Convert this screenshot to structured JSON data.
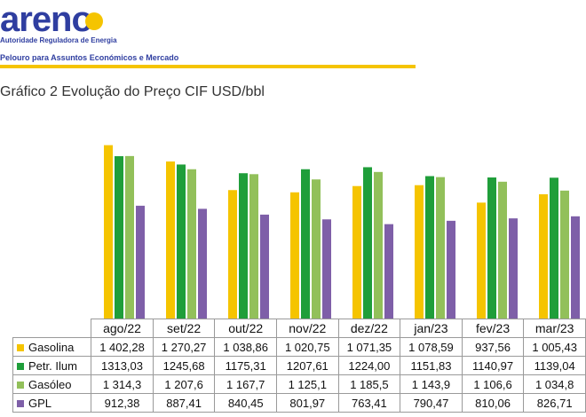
{
  "header": {
    "logo_text": "areno",
    "logo_tagline": "Autoridade Reguladora de Energia",
    "department": "Pelouro para Assuntos Económicos e Mercado"
  },
  "colors": {
    "brand_blue": "#2f3ea0",
    "brand_yellow": "#f5c400",
    "gasolina": "#f5c400",
    "petr_ilum": "#1f9e3a",
    "gasoleo": "#92c05a",
    "gpl": "#7e5fa8"
  },
  "chart_data": {
    "type": "bar",
    "title": "Gráfico 2 Evolução do Preço CIF USD/bbl",
    "categories": [
      "ago/22",
      "set/22",
      "out/22",
      "nov/22",
      "dez/22",
      "jan/23",
      "fev/23",
      "mar/23"
    ],
    "series": [
      {
        "name": "Gasolina",
        "color": "#f5c400",
        "values": [
          1402.28,
          1270.27,
          1038.86,
          1020.75,
          1071.35,
          1078.59,
          937.56,
          1005.43
        ],
        "labels": [
          "1 402,28",
          "1 270,27",
          "1 038,86",
          "1 020,75",
          "1 071,35",
          "1 078,59",
          "937,56",
          "1 005,43"
        ]
      },
      {
        "name": "Petr. Ilum",
        "color": "#1f9e3a",
        "values": [
          1313.03,
          1245.68,
          1175.31,
          1207.61,
          1224.0,
          1151.83,
          1140.97,
          1139.04
        ],
        "labels": [
          "1313,03",
          "1245,68",
          "1175,31",
          "1207,61",
          "1224,00",
          "1151,83",
          "1140,97",
          "1139,04"
        ]
      },
      {
        "name": "Gasóleo",
        "color": "#92c05a",
        "values": [
          1314.3,
          1207.6,
          1167.7,
          1125.1,
          1185.5,
          1143.9,
          1106.6,
          1034.8
        ],
        "labels": [
          "1 314,3",
          "1 207,6",
          "1 167,7",
          "1 125,1",
          "1 185,5",
          "1 143,9",
          "1 106,6",
          "1 034,8"
        ]
      },
      {
        "name": "GPL",
        "color": "#7e5fa8",
        "values": [
          912.38,
          887.41,
          840.45,
          801.97,
          763.41,
          790.47,
          810.06,
          826.71
        ],
        "labels": [
          "912,38",
          "887,41",
          "840,45",
          "801,97",
          "763,41",
          "790,47",
          "810,06",
          "826,71"
        ]
      }
    ],
    "ylim": [
      0,
      1500
    ],
    "grid": false,
    "legend": "data-table-below"
  }
}
